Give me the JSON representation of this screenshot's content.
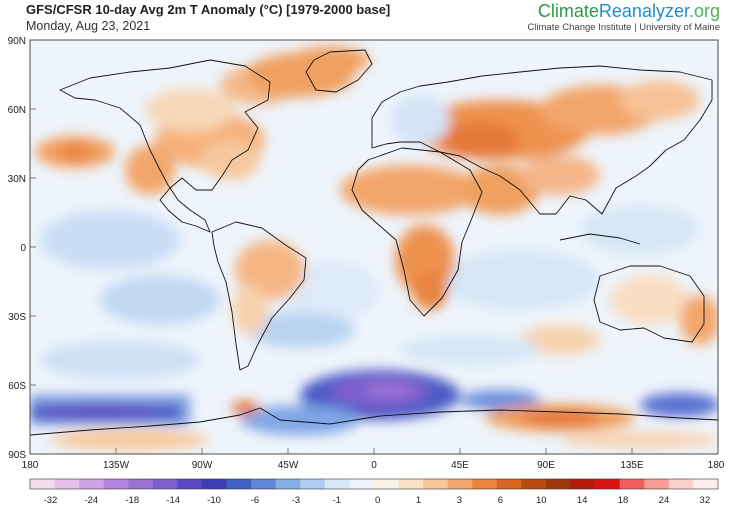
{
  "header": {
    "title": "GFS/CFSR 10-day Avg 2m T Anomaly (°C) [1979-2000 base]",
    "date": "Monday, Aug 23, 2021",
    "brand_part1": "Climate",
    "brand_part2": "Reanalyzer",
    "brand_part3": ".org",
    "affiliation": "Climate Change Institute | University of Maine"
  },
  "axes": {
    "lat_labels": [
      "90N",
      "60N",
      "30N",
      "0",
      "30S",
      "60S",
      "90S"
    ],
    "lon_labels": [
      "180",
      "135W",
      "90W",
      "45W",
      "0",
      "45E",
      "90E",
      "135E",
      "180"
    ]
  },
  "colorbar": {
    "labels": [
      "-32",
      "-24",
      "-18",
      "-14",
      "-10",
      "-6",
      "-3",
      "-1",
      "0",
      "1",
      "3",
      "6",
      "10",
      "14",
      "18",
      "24",
      "32"
    ],
    "colors": [
      "#f3dcef",
      "#e4c0ea",
      "#cfa3e6",
      "#b487df",
      "#9a72d6",
      "#7f5fcd",
      "#5a49c2",
      "#3b3eb4",
      "#3f5fc2",
      "#5f87d8",
      "#86afe6",
      "#afcdf2",
      "#d4e6f8",
      "#edf4fc",
      "#fbf2e7",
      "#fbe2c4",
      "#f8c89a",
      "#f3a66c",
      "#ec8440",
      "#da6420",
      "#bb4a12",
      "#9c360c",
      "#b71a0c",
      "#d8120e",
      "#f05f5b",
      "#f59c93",
      "#f9d1cb",
      "#fdedea"
    ]
  }
}
